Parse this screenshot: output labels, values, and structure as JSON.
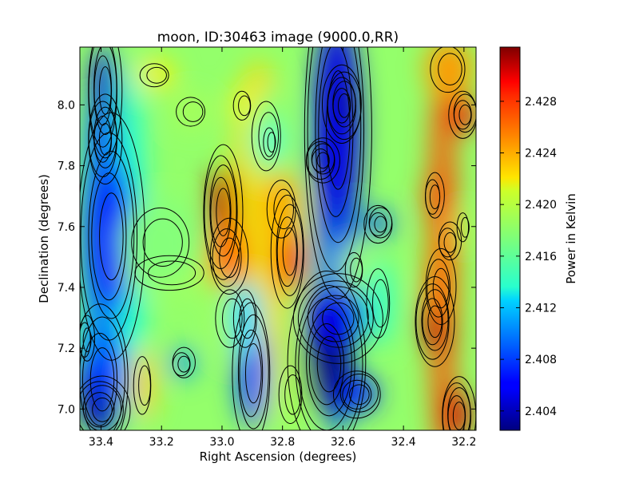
{
  "chart_data": {
    "type": "heatmap",
    "title": "moon, ID:30463 image (9000.0,RR)",
    "xlabel": "Right Ascension (degrees)",
    "ylabel": "Declination (degrees)",
    "xlim": [
      33.47,
      32.16
    ],
    "ylim": [
      6.93,
      8.19
    ],
    "x_ticks": [
      33.4,
      33.2,
      33.0,
      32.8,
      32.6,
      32.4,
      32.2
    ],
    "x_tick_labels": [
      "33.4",
      "33.2",
      "33.0",
      "32.8",
      "32.6",
      "32.4",
      "32.2"
    ],
    "y_ticks": [
      7.0,
      7.2,
      7.4,
      7.6,
      7.8,
      8.0
    ],
    "y_tick_labels": [
      "7.0",
      "7.2",
      "7.4",
      "7.6",
      "7.8",
      "8.0"
    ],
    "contours": true,
    "colormap": "jet",
    "colorbar": {
      "label": "Power in Kelvin",
      "range": [
        2.4025,
        2.4322
      ],
      "ticks": [
        2.404,
        2.408,
        2.412,
        2.416,
        2.42,
        2.424,
        2.428
      ],
      "tick_labels": [
        "2.404",
        "2.408",
        "2.412",
        "2.416",
        "2.420",
        "2.424",
        "2.428"
      ]
    },
    "features": [
      {
        "ra": 33.39,
        "dec": 8.05,
        "value": 2.4055,
        "width": 0.03,
        "height": 0.12
      },
      {
        "ra": 33.39,
        "dec": 7.89,
        "value": 2.4065,
        "width": 0.03,
        "height": 0.08
      },
      {
        "ra": 33.37,
        "dec": 7.57,
        "value": 2.4065,
        "width": 0.06,
        "height": 0.22
      },
      {
        "ra": 33.4,
        "dec": 7.1,
        "value": 2.4075,
        "width": 0.06,
        "height": 0.16
      },
      {
        "ra": 33.4,
        "dec": 7.0,
        "value": 2.4045,
        "width": 0.05,
        "height": 0.06
      },
      {
        "ra": 33.45,
        "dec": 7.23,
        "value": 2.4115,
        "width": 0.02,
        "height": 0.06
      },
      {
        "ra": 33.17,
        "dec": 7.45,
        "value": 2.4185,
        "width": 0.12,
        "height": 0.06
      },
      {
        "ra": 33.2,
        "dec": 7.55,
        "value": 2.4175,
        "width": 0.1,
        "height": 0.12
      },
      {
        "ra": 33.26,
        "dec": 7.08,
        "value": 2.4225,
        "width": 0.03,
        "height": 0.1
      },
      {
        "ra": 33.13,
        "dec": 7.15,
        "value": 2.4105,
        "width": 0.03,
        "height": 0.04
      },
      {
        "ra": 33.22,
        "dec": 8.1,
        "value": 2.4215,
        "width": 0.05,
        "height": 0.04
      },
      {
        "ra": 33.1,
        "dec": 7.98,
        "value": 2.4185,
        "width": 0.05,
        "height": 0.05
      },
      {
        "ra": 33.0,
        "dec": 7.65,
        "value": 2.4305,
        "width": 0.035,
        "height": 0.12
      },
      {
        "ra": 32.98,
        "dec": 7.5,
        "value": 2.4255,
        "width": 0.05,
        "height": 0.1
      },
      {
        "ra": 32.97,
        "dec": 7.3,
        "value": 2.4185,
        "width": 0.05,
        "height": 0.1
      },
      {
        "ra": 32.78,
        "dec": 7.52,
        "value": 2.4275,
        "width": 0.035,
        "height": 0.12
      },
      {
        "ra": 32.8,
        "dec": 7.66,
        "value": 2.4235,
        "width": 0.05,
        "height": 0.1
      },
      {
        "ra": 32.9,
        "dec": 7.12,
        "value": 2.4085,
        "width": 0.04,
        "height": 0.15
      },
      {
        "ra": 32.92,
        "dec": 7.3,
        "value": 2.4125,
        "width": 0.04,
        "height": 0.1
      },
      {
        "ra": 32.77,
        "dec": 7.05,
        "value": 2.4185,
        "width": 0.04,
        "height": 0.1
      },
      {
        "ra": 32.85,
        "dec": 7.9,
        "value": 2.4175,
        "width": 0.05,
        "height": 0.12
      },
      {
        "ra": 32.93,
        "dec": 8.0,
        "value": 2.4215,
        "width": 0.03,
        "height": 0.05
      },
      {
        "ra": 32.84,
        "dec": 7.88,
        "value": 2.4135,
        "width": 0.02,
        "height": 0.05
      },
      {
        "ra": 32.65,
        "dec": 7.15,
        "value": 2.4025,
        "width": 0.06,
        "height": 0.14
      },
      {
        "ra": 32.62,
        "dec": 7.3,
        "value": 2.4055,
        "width": 0.08,
        "height": 0.08
      },
      {
        "ra": 32.55,
        "dec": 7.05,
        "value": 2.4075,
        "width": 0.05,
        "height": 0.05
      },
      {
        "ra": 32.62,
        "dec": 7.92,
        "value": 2.4055,
        "width": 0.06,
        "height": 0.3
      },
      {
        "ra": 32.6,
        "dec": 8.0,
        "value": 2.404,
        "width": 0.03,
        "height": 0.06
      },
      {
        "ra": 32.67,
        "dec": 7.82,
        "value": 2.405,
        "width": 0.03,
        "height": 0.04
      },
      {
        "ra": 32.56,
        "dec": 7.46,
        "value": 2.4185,
        "width": 0.03,
        "height": 0.06
      },
      {
        "ra": 32.48,
        "dec": 7.61,
        "value": 2.4085,
        "width": 0.03,
        "height": 0.04
      },
      {
        "ra": 32.48,
        "dec": 7.35,
        "value": 2.4155,
        "width": 0.04,
        "height": 0.12
      },
      {
        "ra": 32.3,
        "dec": 7.29,
        "value": 2.4305,
        "width": 0.035,
        "height": 0.08
      },
      {
        "ra": 32.28,
        "dec": 7.4,
        "value": 2.4255,
        "width": 0.04,
        "height": 0.1
      },
      {
        "ra": 32.22,
        "dec": 6.98,
        "value": 2.43,
        "width": 0.03,
        "height": 0.07
      },
      {
        "ra": 32.3,
        "dec": 7.7,
        "value": 2.4265,
        "width": 0.025,
        "height": 0.06
      },
      {
        "ra": 32.25,
        "dec": 7.55,
        "value": 2.425,
        "width": 0.03,
        "height": 0.05
      },
      {
        "ra": 32.2,
        "dec": 7.97,
        "value": 2.429,
        "width": 0.03,
        "height": 0.05
      },
      {
        "ra": 32.25,
        "dec": 8.12,
        "value": 2.424,
        "width": 0.06,
        "height": 0.08
      },
      {
        "ra": 32.2,
        "dec": 7.6,
        "value": 2.4185,
        "width": 0.02,
        "height": 0.05
      }
    ]
  }
}
